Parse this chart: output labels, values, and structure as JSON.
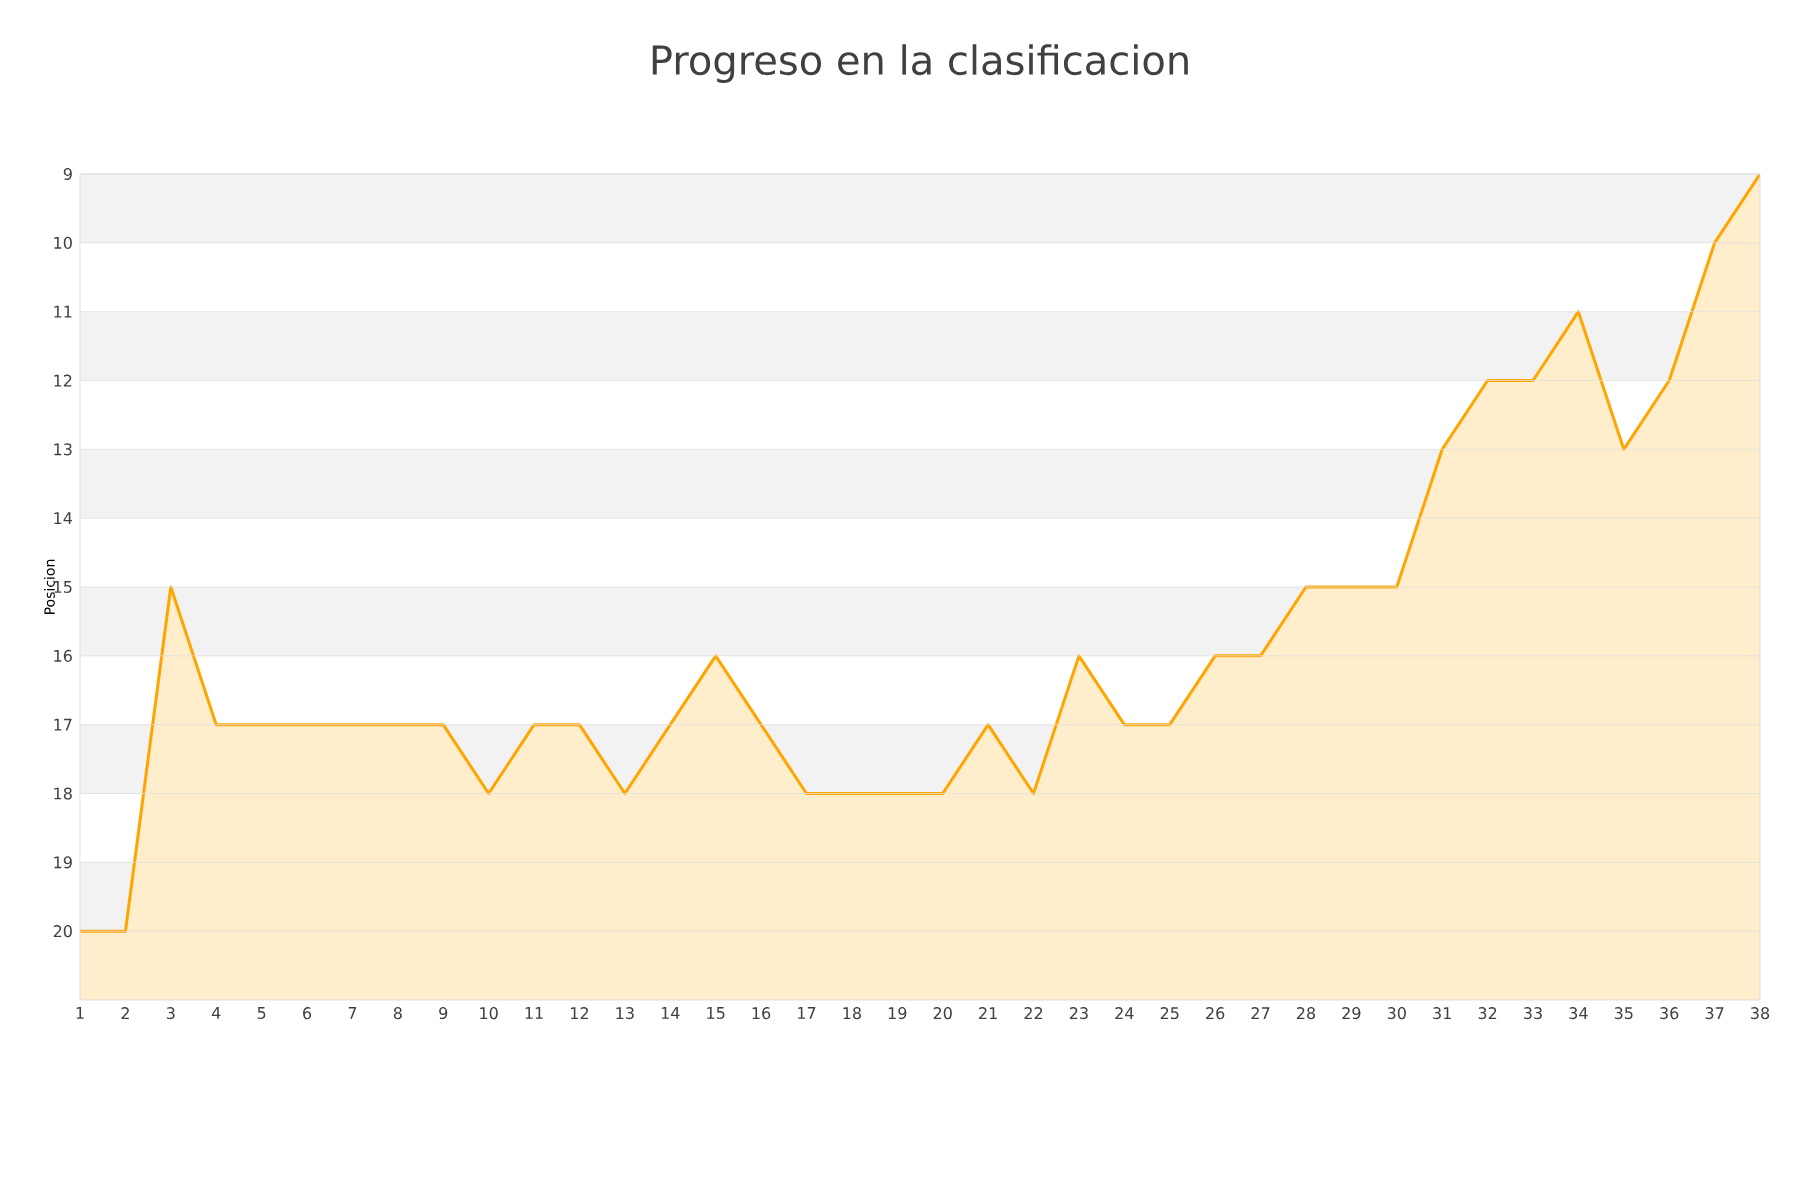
{
  "chart_data": {
    "type": "area",
    "title": "Progreso en la clasificacion",
    "ylabel": "Posicion",
    "x": [
      1,
      2,
      3,
      4,
      5,
      6,
      7,
      8,
      9,
      10,
      11,
      12,
      13,
      14,
      15,
      16,
      17,
      18,
      19,
      20,
      21,
      22,
      23,
      24,
      25,
      26,
      27,
      28,
      29,
      30,
      31,
      32,
      33,
      34,
      35,
      36,
      37,
      38
    ],
    "series": [
      {
        "color": "#ffa500",
        "values": [
          20,
          20,
          15,
          17,
          17,
          17,
          17,
          17,
          17,
          18,
          17,
          17,
          18,
          17,
          16,
          17,
          18,
          18,
          18,
          18,
          17,
          18,
          16,
          17,
          17,
          16,
          16,
          15,
          15,
          15,
          13,
          12,
          12,
          11,
          13,
          12,
          10,
          9
        ]
      }
    ],
    "xlim": [
      1,
      38
    ],
    "xticks": [
      1,
      2,
      3,
      4,
      5,
      6,
      7,
      8,
      9,
      10,
      11,
      12,
      13,
      14,
      15,
      16,
      17,
      18,
      19,
      20,
      21,
      22,
      23,
      24,
      25,
      26,
      27,
      28,
      29,
      30,
      31,
      32,
      33,
      34,
      35,
      36,
      37,
      38
    ],
    "bands": [
      {
        "axis": "y",
        "from": 9,
        "to": 10,
        "color": "#f2f2f2"
      },
      {
        "axis": "y",
        "from": 11,
        "to": 12,
        "color": "#f2f2f2"
      },
      {
        "axis": "y",
        "from": 13,
        "to": 14,
        "color": "#f2f2f2"
      },
      {
        "axis": "y",
        "from": 15,
        "to": 16,
        "color": "#f2f2f2"
      },
      {
        "axis": "y",
        "from": 17,
        "to": 18,
        "color": "#f2f2f2"
      },
      {
        "axis": "y",
        "from": 19,
        "to": 20,
        "color": "#f2f2f2"
      }
    ],
    "ylim": [
      21,
      9
    ],
    "yticks": [
      9,
      10,
      11,
      12,
      13,
      14,
      15,
      16,
      17,
      18,
      19,
      20
    ],
    "grid": "y",
    "marker": "none",
    "line_style": "solid"
  }
}
